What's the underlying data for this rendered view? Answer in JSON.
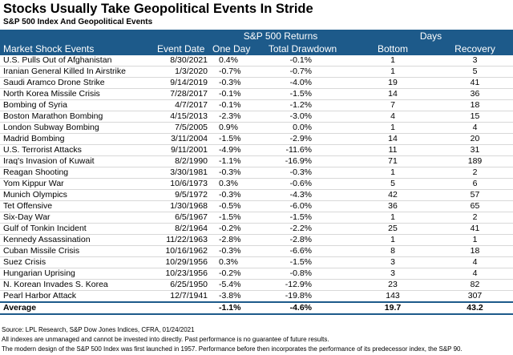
{
  "title": "Stocks Usually Take Geopolitical Events In Stride",
  "subtitle": "S&P 500 Index And Geopolitical Events",
  "table": {
    "group_header": [
      "S&P 500 Returns",
      "Days"
    ],
    "header": [
      "Market Shock Events",
      "Event Date",
      "One Day",
      "Total Drawdown",
      "Bottom",
      "Recovery"
    ],
    "rows": [
      [
        "U.S. Pulls Out of Afghanistan",
        "8/30/2021",
        "0.4%",
        "-0.1%",
        "1",
        "3"
      ],
      [
        "Iranian General Killed In Airstrike",
        "1/3/2020",
        "-0.7%",
        "-0.7%",
        "1",
        "5"
      ],
      [
        "Saudi Aramco Drone Strike",
        "9/14/2019",
        "-0.3%",
        "-4.0%",
        "19",
        "41"
      ],
      [
        "North Korea Missile Crisis",
        "7/28/2017",
        "-0.1%",
        "-1.5%",
        "14",
        "36"
      ],
      [
        "Bombing of Syria",
        "4/7/2017",
        "-0.1%",
        "-1.2%",
        "7",
        "18"
      ],
      [
        "Boston Marathon Bombing",
        "4/15/2013",
        "-2.3%",
        "-3.0%",
        "4",
        "15"
      ],
      [
        "London Subway Bombing",
        "7/5/2005",
        "0.9%",
        "0.0%",
        "1",
        "4"
      ],
      [
        "Madrid Bombing",
        "3/11/2004",
        "-1.5%",
        "-2.9%",
        "14",
        "20"
      ],
      [
        "U.S. Terrorist Attacks",
        "9/11/2001",
        "-4.9%",
        "-11.6%",
        "11",
        "31"
      ],
      [
        "Iraq's Invasion of Kuwait",
        "8/2/1990",
        "-1.1%",
        "-16.9%",
        "71",
        "189"
      ],
      [
        "Reagan Shooting",
        "3/30/1981",
        "-0.3%",
        "-0.3%",
        "1",
        "2"
      ],
      [
        "Yom Kippur War",
        "10/6/1973",
        "0.3%",
        "-0.6%",
        "5",
        "6"
      ],
      [
        "Munich Olympics",
        "9/5/1972",
        "-0.3%",
        "-4.3%",
        "42",
        "57"
      ],
      [
        "Tet Offensive",
        "1/30/1968",
        "-0.5%",
        "-6.0%",
        "36",
        "65"
      ],
      [
        "Six-Day War",
        "6/5/1967",
        "-1.5%",
        "-1.5%",
        "1",
        "2"
      ],
      [
        "Gulf of Tonkin Incident",
        "8/2/1964",
        "-0.2%",
        "-2.2%",
        "25",
        "41"
      ],
      [
        "Kennedy Assassination",
        "11/22/1963",
        "-2.8%",
        "-2.8%",
        "1",
        "1"
      ],
      [
        "Cuban Missile Crisis",
        "10/16/1962",
        "-0.3%",
        "-6.6%",
        "8",
        "18"
      ],
      [
        "Suez Crisis",
        "10/29/1956",
        "0.3%",
        "-1.5%",
        "3",
        "4"
      ],
      [
        "Hungarian Uprising",
        "10/23/1956",
        "-0.2%",
        "-0.8%",
        "3",
        "4"
      ],
      [
        "N. Korean Invades S. Korea",
        "6/25/1950",
        "-5.4%",
        "-12.9%",
        "23",
        "82"
      ],
      [
        "Pearl Harbor Attack",
        "12/7/1941",
        "-3.8%",
        "-19.8%",
        "143",
        "307"
      ]
    ],
    "average": [
      "Average",
      "-1.1%",
      "-4.6%",
      "19.7",
      "43.2"
    ]
  },
  "footnotes": [
    "Source: LPL Research, S&P Dow Jones Indices, CFRA, 01/24/2021",
    "All indexes are unmanaged and cannot be invested into directly.  Past performance is no guarantee of future results.",
    "The modern design of the S&P 500 Index was first launched in 1957. Performance before then incorporates the performance of its predecessor index, the S&P 90."
  ]
}
